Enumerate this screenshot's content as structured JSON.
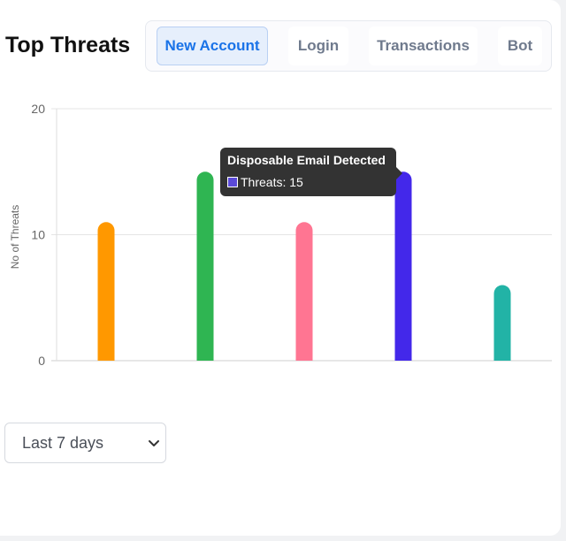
{
  "header": {
    "title": "Top Threats"
  },
  "tabs": [
    {
      "label": "New Account",
      "active": true
    },
    {
      "label": "Login",
      "active": false
    },
    {
      "label": "Transactions",
      "active": false
    },
    {
      "label": "Bot",
      "active": false
    }
  ],
  "filter": {
    "selected": "Last 7 days",
    "icon": "chevron-down-icon"
  },
  "tooltip": {
    "title": "Disposable Email Detected",
    "label": "Threats: 15",
    "swatch_color": "#5b4ad8"
  },
  "chart_data": {
    "type": "bar",
    "title": "",
    "xlabel": "",
    "ylabel": "No of Threats",
    "ylim": [
      0,
      20
    ],
    "yticks": [
      0,
      10,
      20
    ],
    "grid": true,
    "x_tick_labels_visible": false,
    "series": [
      {
        "name": "Threats",
        "values": [
          11,
          15,
          11,
          15,
          6
        ]
      }
    ],
    "colors": [
      "#ff9800",
      "#2fb552",
      "#ff7592",
      "#4328ea",
      "#22b3a6"
    ],
    "hovered_index": 3
  }
}
